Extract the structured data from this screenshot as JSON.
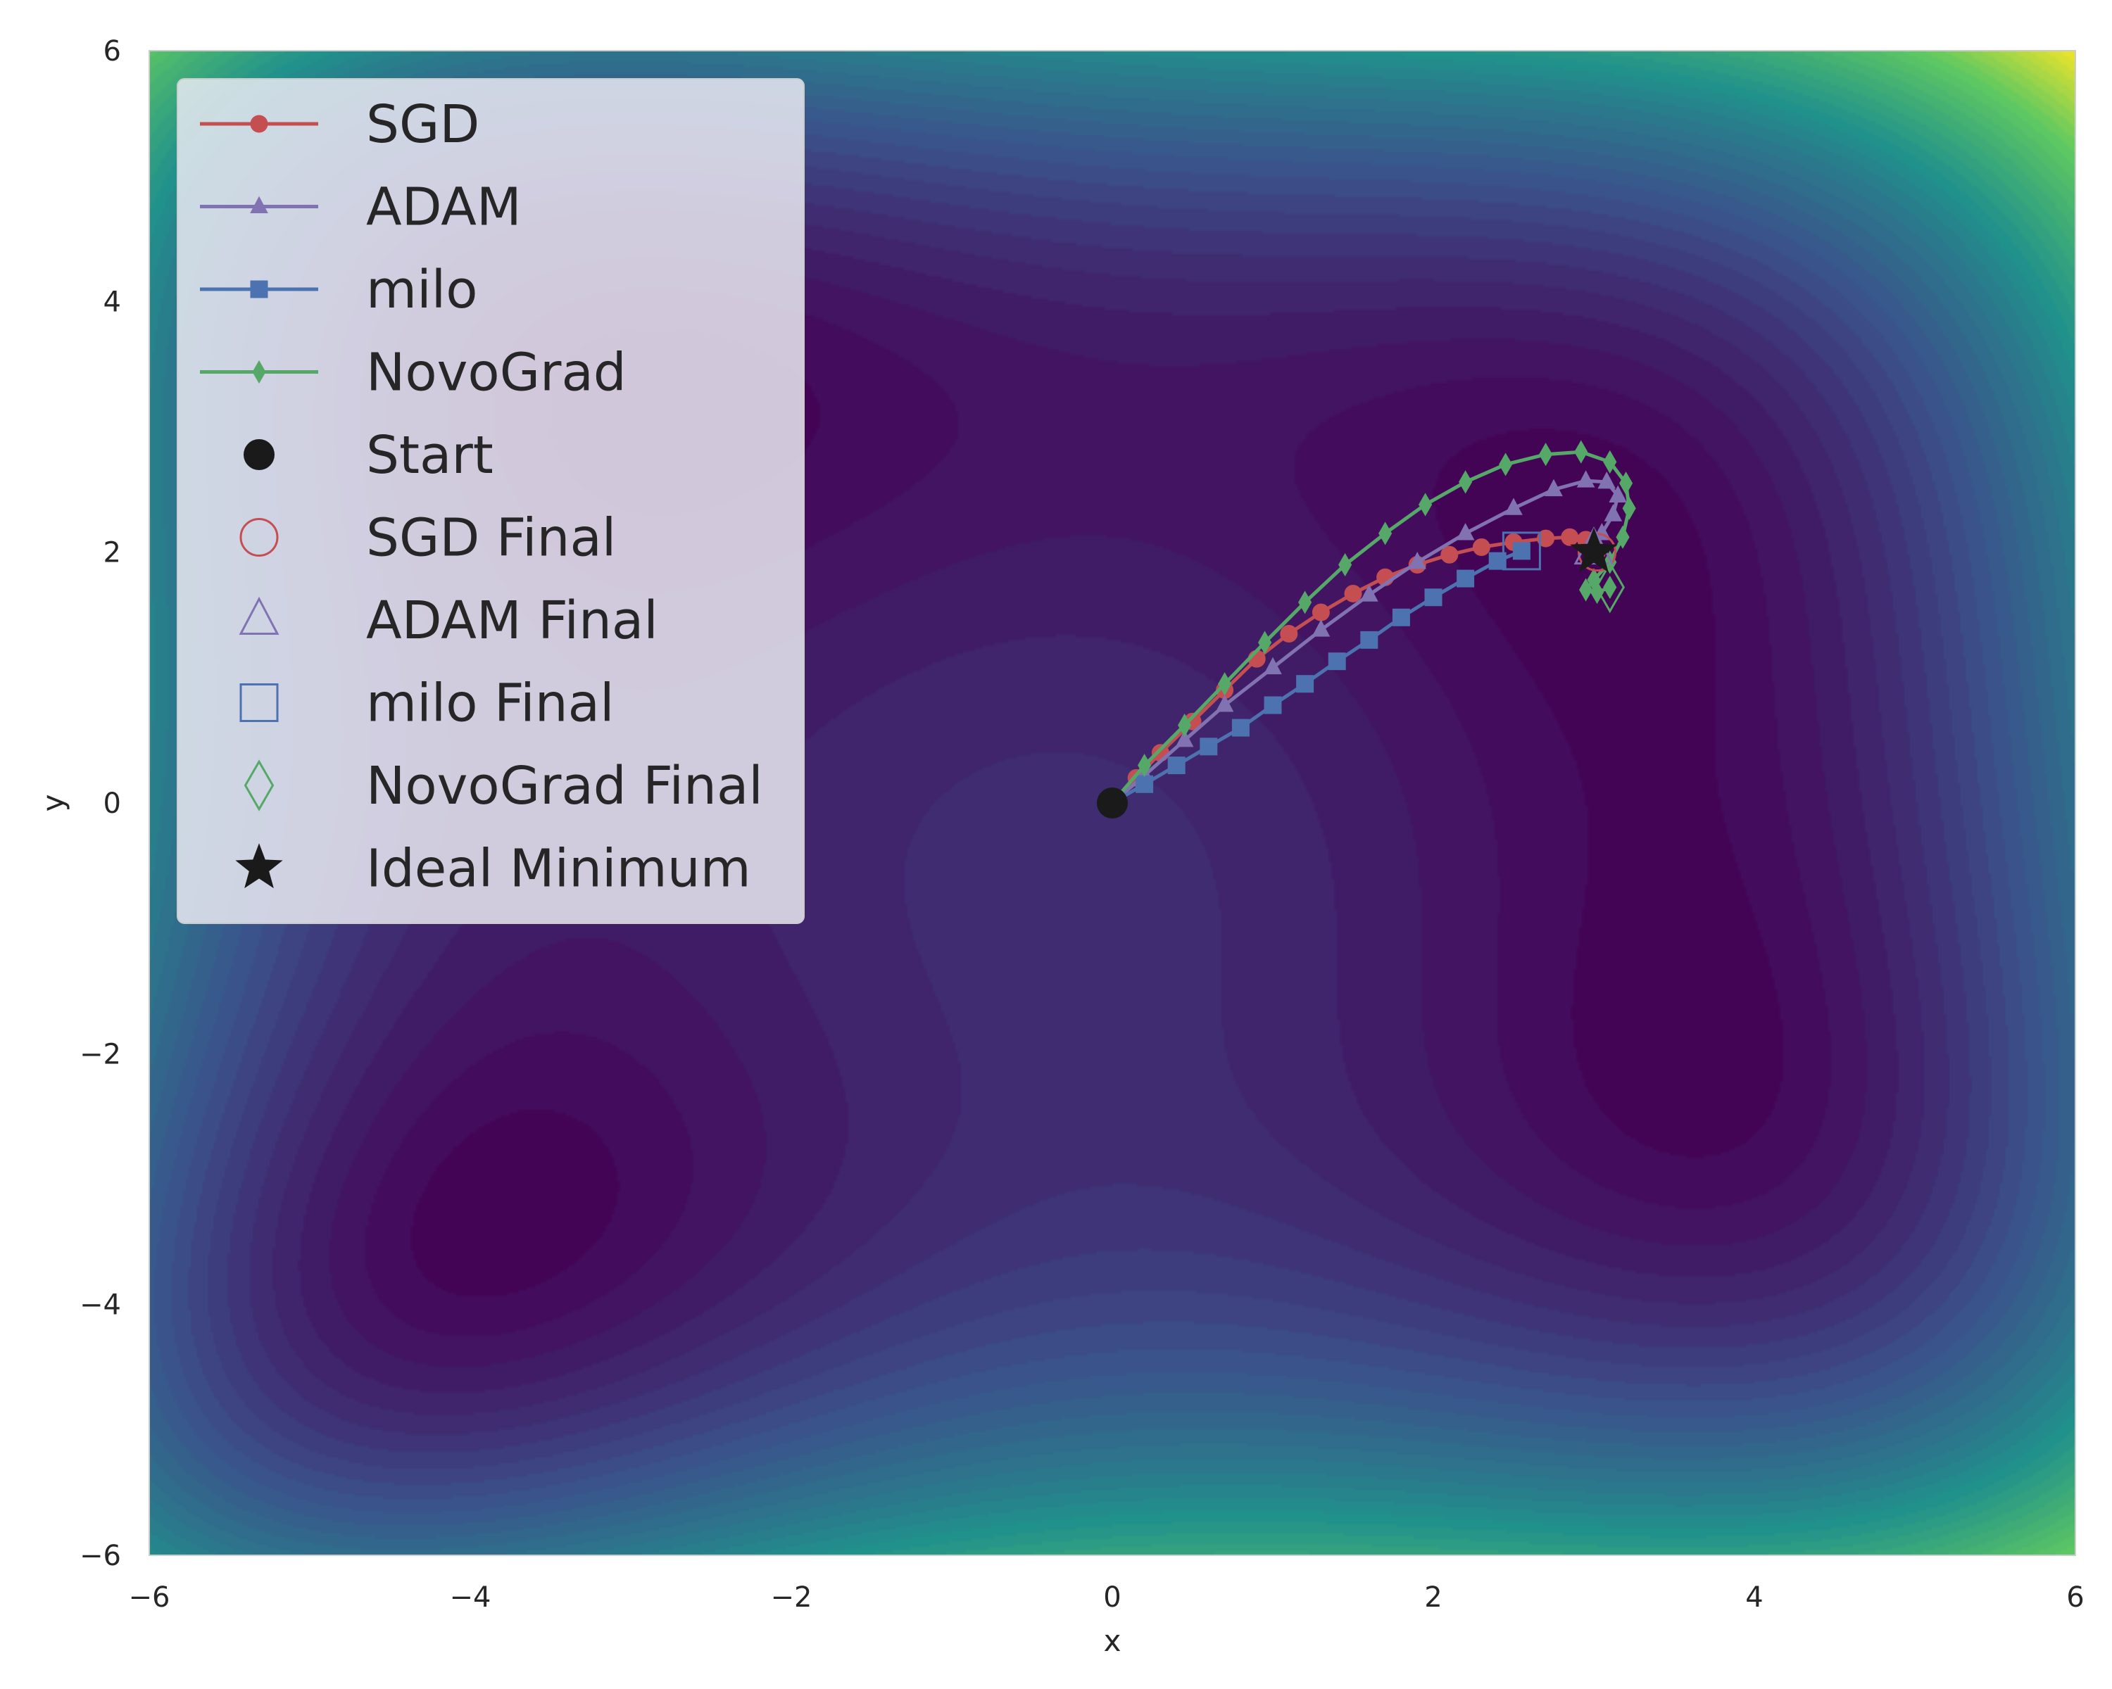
{
  "chart_data": {
    "type": "contour",
    "xlabel": "x",
    "ylabel": "y",
    "xlim": [
      -6,
      6
    ],
    "ylim": [
      -6,
      6
    ],
    "xticks": [
      -6,
      -4,
      -2,
      0,
      2,
      4,
      6
    ],
    "yticks": [
      -6,
      -4,
      -2,
      0,
      2,
      4,
      6
    ],
    "xtick_labels": [
      "−6",
      "−4",
      "−2",
      "0",
      "2",
      "4",
      "6"
    ],
    "ytick_labels": [
      "−6",
      "−4",
      "−2",
      "0",
      "2",
      "4",
      "6"
    ],
    "grid": false,
    "colormap": "viridis",
    "legend_placement": "upper-left",
    "series": [
      {
        "name": "SGD",
        "color": "#c44e52",
        "marker": "circle",
        "points": [
          [
            0,
            0
          ],
          [
            0.15,
            0.2
          ],
          [
            0.3,
            0.4
          ],
          [
            0.5,
            0.65
          ],
          [
            0.7,
            0.9
          ],
          [
            0.9,
            1.15
          ],
          [
            1.1,
            1.35
          ],
          [
            1.3,
            1.52
          ],
          [
            1.5,
            1.67
          ],
          [
            1.7,
            1.8
          ],
          [
            1.9,
            1.9
          ],
          [
            2.1,
            1.98
          ],
          [
            2.3,
            2.04
          ],
          [
            2.5,
            2.08
          ],
          [
            2.7,
            2.11
          ],
          [
            2.85,
            2.12
          ],
          [
            2.95,
            2.1
          ],
          [
            3.0,
            2.05
          ],
          [
            3.02,
            2.0
          ]
        ]
      },
      {
        "name": "ADAM",
        "color": "#8172b2",
        "marker": "triangle",
        "points": [
          [
            0,
            0
          ],
          [
            0.2,
            0.22
          ],
          [
            0.45,
            0.5
          ],
          [
            0.7,
            0.78
          ],
          [
            1.0,
            1.08
          ],
          [
            1.3,
            1.38
          ],
          [
            1.6,
            1.66
          ],
          [
            1.9,
            1.92
          ],
          [
            2.2,
            2.15
          ],
          [
            2.5,
            2.35
          ],
          [
            2.75,
            2.5
          ],
          [
            2.95,
            2.57
          ],
          [
            3.08,
            2.56
          ],
          [
            3.15,
            2.45
          ],
          [
            3.12,
            2.3
          ],
          [
            3.05,
            2.15
          ],
          [
            3.0,
            2.02
          ]
        ]
      },
      {
        "name": "milo",
        "color": "#4c72b0",
        "marker": "square",
        "points": [
          [
            0,
            0
          ],
          [
            0.2,
            0.15
          ],
          [
            0.4,
            0.3
          ],
          [
            0.6,
            0.45
          ],
          [
            0.8,
            0.6
          ],
          [
            1.0,
            0.78
          ],
          [
            1.2,
            0.95
          ],
          [
            1.4,
            1.13
          ],
          [
            1.6,
            1.3
          ],
          [
            1.8,
            1.48
          ],
          [
            2.0,
            1.64
          ],
          [
            2.2,
            1.79
          ],
          [
            2.4,
            1.93
          ],
          [
            2.55,
            2.01
          ]
        ]
      },
      {
        "name": "NovoGrad",
        "color": "#55a868",
        "marker": "diamond",
        "points": [
          [
            0,
            0
          ],
          [
            0.2,
            0.3
          ],
          [
            0.45,
            0.62
          ],
          [
            0.7,
            0.95
          ],
          [
            0.95,
            1.28
          ],
          [
            1.2,
            1.6
          ],
          [
            1.45,
            1.9
          ],
          [
            1.7,
            2.15
          ],
          [
            1.95,
            2.38
          ],
          [
            2.2,
            2.56
          ],
          [
            2.45,
            2.7
          ],
          [
            2.7,
            2.78
          ],
          [
            2.92,
            2.8
          ],
          [
            3.1,
            2.72
          ],
          [
            3.2,
            2.55
          ],
          [
            3.22,
            2.35
          ],
          [
            3.18,
            2.12
          ],
          [
            3.1,
            1.92
          ],
          [
            3.0,
            1.78
          ],
          [
            2.95,
            1.7
          ],
          [
            3.02,
            1.68
          ],
          [
            3.1,
            1.72
          ]
        ]
      }
    ],
    "start": {
      "name": "Start",
      "point": [
        0,
        0
      ],
      "color": "#1a1a1a"
    },
    "finals": [
      {
        "name": "SGD Final",
        "point": [
          3.02,
          2.0
        ],
        "color": "#c44e52",
        "marker": "circle"
      },
      {
        "name": "ADAM Final",
        "point": [
          3.0,
          2.02
        ],
        "color": "#8172b2",
        "marker": "triangle"
      },
      {
        "name": "milo Final",
        "point": [
          2.55,
          2.01
        ],
        "color": "#4c72b0",
        "marker": "square"
      },
      {
        "name": "NovoGrad Final",
        "point": [
          3.1,
          1.72
        ],
        "color": "#55a868",
        "marker": "diamond"
      }
    ],
    "ideal_minimum": {
      "name": "Ideal Minimum",
      "point": [
        3.0,
        2.0
      ],
      "color": "#1a1a1a"
    },
    "legend": [
      "SGD",
      "ADAM",
      "milo",
      "NovoGrad",
      "Start",
      "SGD Final",
      "ADAM Final",
      "milo Final",
      "NovoGrad Final",
      "Ideal Minimum"
    ]
  }
}
